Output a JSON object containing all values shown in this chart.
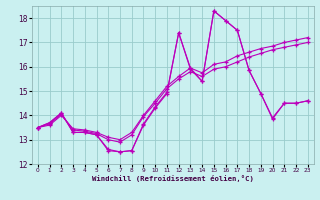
{
  "xlabel": "Windchill (Refroidissement éolien,°C)",
  "bg_color": "#caf0f0",
  "line_color": "#bb00bb",
  "grid_color": "#99cccc",
  "xlim": [
    -0.5,
    23.5
  ],
  "ylim": [
    12,
    18.5
  ],
  "yticks": [
    12,
    13,
    14,
    15,
    16,
    17,
    18
  ],
  "xticks": [
    0,
    1,
    2,
    3,
    4,
    5,
    6,
    7,
    8,
    9,
    10,
    11,
    12,
    13,
    14,
    15,
    16,
    17,
    18,
    19,
    20,
    21,
    22,
    23
  ],
  "series": [
    [
      13.5,
      13.7,
      14.1,
      13.3,
      13.3,
      13.2,
      12.55,
      12.5,
      12.55,
      13.6,
      14.3,
      14.9,
      17.4,
      15.9,
      15.4,
      18.3,
      17.9,
      17.5,
      15.85,
      14.9,
      13.85,
      14.5,
      14.5,
      14.6
    ],
    [
      13.5,
      13.65,
      14.05,
      13.4,
      13.35,
      13.25,
      13.0,
      12.9,
      13.2,
      13.95,
      14.5,
      15.1,
      15.5,
      15.8,
      15.6,
      15.9,
      16.0,
      16.2,
      16.4,
      16.55,
      16.7,
      16.8,
      16.9,
      17.0
    ],
    [
      13.5,
      13.6,
      14.0,
      13.45,
      13.4,
      13.3,
      13.1,
      13.0,
      13.3,
      14.0,
      14.6,
      15.2,
      15.6,
      15.95,
      15.75,
      16.1,
      16.2,
      16.45,
      16.6,
      16.75,
      16.85,
      17.0,
      17.1,
      17.2
    ],
    [
      13.5,
      13.7,
      14.1,
      13.3,
      13.3,
      13.2,
      12.6,
      12.5,
      12.55,
      13.65,
      14.35,
      14.95,
      17.4,
      15.95,
      15.4,
      18.3,
      17.9,
      17.5,
      15.85,
      14.9,
      13.9,
      14.5,
      14.5,
      14.6
    ]
  ]
}
